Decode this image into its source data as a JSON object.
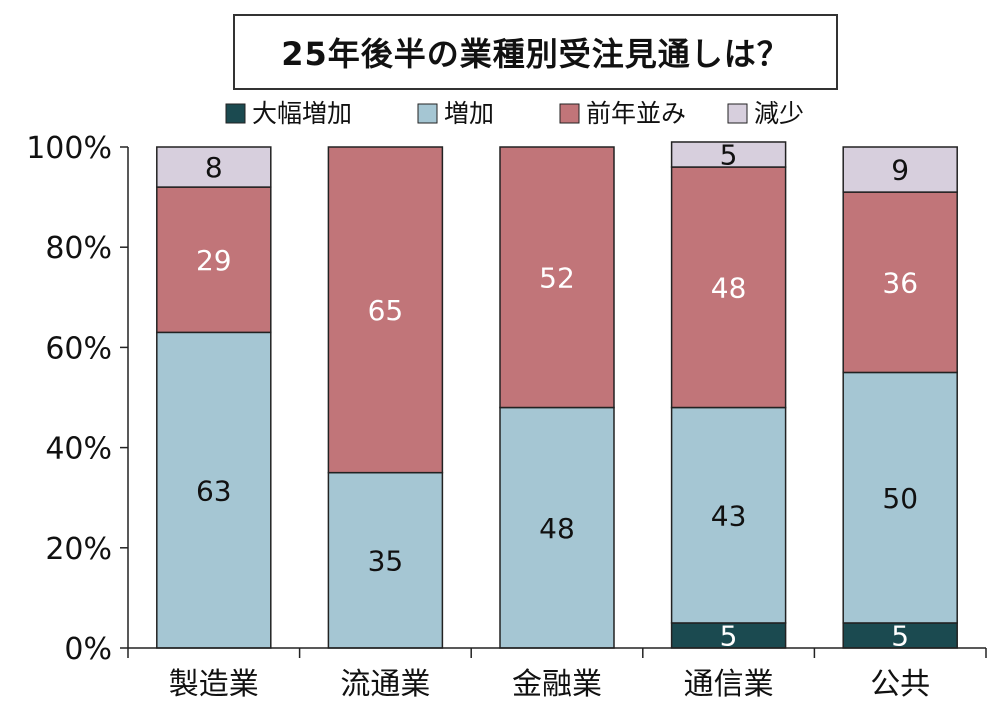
{
  "chart_data": {
    "type": "bar",
    "stacked": true,
    "percent": true,
    "title": "25年後半の業種別受注見通しは？",
    "categories": [
      "製造業",
      "流通業",
      "金融業",
      "通信業",
      "公共"
    ],
    "series": [
      {
        "name": "大幅増加",
        "color": "#1b4a50",
        "values": [
          0,
          0,
          0,
          5,
          5
        ],
        "labels": [
          "",
          "",
          "",
          "5",
          "5"
        ]
      },
      {
        "name": "増加",
        "color": "#a5c6d3",
        "values": [
          63,
          35,
          48,
          43,
          50
        ],
        "labels": [
          "63",
          "35",
          "48",
          "43",
          "50"
        ]
      },
      {
        "name": "前年並み",
        "color": "#c17579",
        "values": [
          29,
          65,
          52,
          48,
          36
        ],
        "labels": [
          "29",
          "65",
          "52",
          "48",
          "36"
        ]
      },
      {
        "name": "減少",
        "color": "#d7cfdd",
        "values": [
          8,
          0,
          0,
          5,
          9
        ],
        "labels": [
          "8",
          "",
          "",
          "5",
          "9"
        ]
      }
    ],
    "yticks": [
      "0%",
      "20%",
      "40%",
      "60%",
      "80%",
      "100%"
    ],
    "ylim": [
      0,
      100
    ],
    "legend_position": "top",
    "grid": false
  }
}
